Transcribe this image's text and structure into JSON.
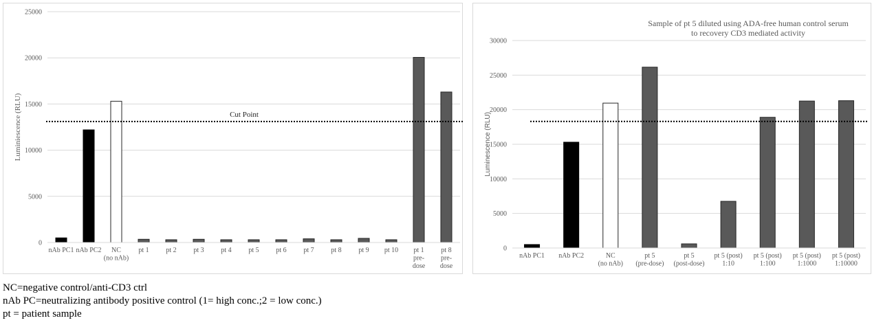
{
  "chart_data": [
    {
      "type": "bar",
      "title": "",
      "xlabel": "",
      "ylabel": "Luminiescence (RLU)",
      "ylim": [
        0,
        25000
      ],
      "yticks": [
        0,
        5000,
        10000,
        15000,
        20000,
        25000
      ],
      "grid": true,
      "legend": null,
      "categories": [
        "nAb PC1",
        "nAb PC2",
        "NC (no nAb)",
        "pt 1",
        "pt 2",
        "pt 3",
        "pt 4",
        "pt 5",
        "pt 6",
        "pt 7",
        "pt 8",
        "pt 9",
        "pt 10",
        "pt 1 pre-dose",
        "pt 8 pre-dose"
      ],
      "category_lines": [
        [
          "nAb PC1"
        ],
        [
          "nAb PC2"
        ],
        [
          "NC",
          "(no nAb)"
        ],
        [
          "pt 1"
        ],
        [
          "pt 2"
        ],
        [
          "pt 3"
        ],
        [
          "pt 4"
        ],
        [
          "pt 5"
        ],
        [
          "pt 6"
        ],
        [
          "pt 7"
        ],
        [
          "pt 8"
        ],
        [
          "pt 9"
        ],
        [
          "pt 10"
        ],
        [
          "pt 1",
          "pre-",
          "dose"
        ],
        [
          "pt 8",
          "pre-",
          "dose"
        ]
      ],
      "values": [
        500,
        12200,
        15300,
        350,
        300,
        350,
        300,
        300,
        300,
        400,
        300,
        450,
        300,
        20050,
        16300
      ],
      "bar_colors": [
        "#000000",
        "#000000",
        "#ffffff",
        "#595959",
        "#595959",
        "#595959",
        "#595959",
        "#595959",
        "#595959",
        "#595959",
        "#595959",
        "#595959",
        "#595959",
        "#595959",
        "#595959"
      ],
      "reference_line": {
        "label": "Cut Point",
        "value": 13100,
        "style": "dotted"
      }
    },
    {
      "type": "bar",
      "title": "Sample of pt 5 diluted using ADA-free human control serum to recovery CD3 mediated activity",
      "title_lines": [
        "Sample of pt 5 diluted using ADA-free human control serum",
        "to recovery CD3 mediated activity"
      ],
      "xlabel": "",
      "ylabel": "Luminescence (RLU)",
      "ylim": [
        0,
        30000
      ],
      "yticks": [
        0,
        5000,
        10000,
        15000,
        20000,
        25000,
        30000
      ],
      "grid": true,
      "legend": null,
      "categories": [
        "nAb PC1",
        "nAb PC2",
        "NC (no nAb)",
        "pt 5 (pre-dose)",
        "pt 5 (post-dose)",
        "pt 5 (post) 1:10",
        "pt 5 (post) 1:100",
        "pt 5 (post) 1:1000",
        "pt 5 (post) 1:10000"
      ],
      "category_lines": [
        [
          "nAb PC1"
        ],
        [
          "nAb PC2"
        ],
        [
          "NC",
          "(no nAb)"
        ],
        [
          "pt 5",
          "(pre-dose)"
        ],
        [
          "pt 5",
          "(post-dose)"
        ],
        [
          "pt 5 (post)",
          "1:10"
        ],
        [
          "pt 5 (post)",
          "1:100"
        ],
        [
          "pt 5 (post)",
          "1:1000"
        ],
        [
          "pt 5 (post)",
          "1:10000"
        ]
      ],
      "values": [
        500,
        15300,
        20950,
        26150,
        600,
        6750,
        18900,
        21250,
        21300
      ],
      "bar_colors": [
        "#000000",
        "#000000",
        "#ffffff",
        "#595959",
        "#595959",
        "#595959",
        "#595959",
        "#595959",
        "#595959"
      ],
      "reference_line": {
        "label": "",
        "value": 18300,
        "style": "dotted"
      }
    }
  ],
  "footnotes": [
    "NC=negative control/anti-CD3 ctrl",
    "nAb PC=neutralizing antibody positive control (1= high conc.;2 = low conc.)",
    "pt = patient sample"
  ],
  "colors": {
    "gridline": "#d9d9d9",
    "dark_bar": "#595959",
    "black_bar": "#000000",
    "bar_outline": "#262626"
  }
}
